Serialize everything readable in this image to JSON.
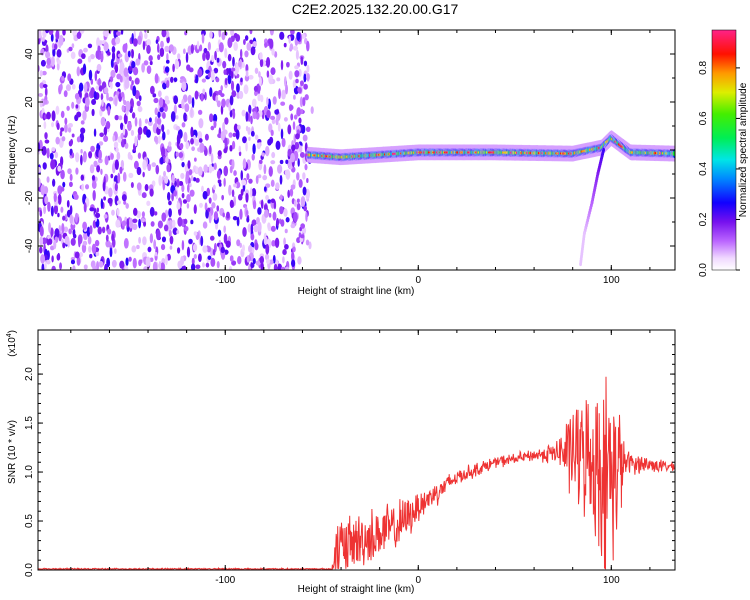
{
  "title": "C2E2.2025.132.20.00.G17",
  "chart_data": [
    {
      "type": "heatmap",
      "xlabel": "Height of straight line (km)",
      "ylabel": "Frequency (Hz)",
      "xlim": [
        -197,
        133
      ],
      "ylim": [
        -50,
        50
      ],
      "xticks": [
        -100,
        0,
        100
      ],
      "yticks": [
        -40,
        -20,
        0,
        20,
        40
      ],
      "colorbar": {
        "label": "Normalized spectral amplitude",
        "range": [
          0,
          0.95
        ],
        "ticks": [
          "0.0",
          "0.2",
          "0.4",
          "0.6",
          "0.8"
        ]
      },
      "noise_region": {
        "x": [
          -197,
          -57
        ],
        "y": [
          -50,
          50
        ],
        "level": [
          0.05,
          0.25
        ]
      },
      "signal_ridge": [
        {
          "x": -57,
          "y": -2
        },
        {
          "x": -40,
          "y": -3
        },
        {
          "x": -20,
          "y": -2
        },
        {
          "x": 0,
          "y": -1
        },
        {
          "x": 40,
          "y": -1
        },
        {
          "x": 80,
          "y": -1.5
        },
        {
          "x": 95,
          "y": 1
        },
        {
          "x": 100,
          "y": 5
        },
        {
          "x": 110,
          "y": -1
        },
        {
          "x": 133,
          "y": -1.5
        }
      ],
      "signal_branch": [
        {
          "x": 96,
          "y": 0
        },
        {
          "x": 93,
          "y": -10
        },
        {
          "x": 90,
          "y": -22
        },
        {
          "x": 86,
          "y": -35
        },
        {
          "x": 84,
          "y": -48
        }
      ]
    },
    {
      "type": "line",
      "xlabel": "Height of straight line (km)",
      "ylabel": "SNR (10 * v/v)",
      "multiplier": "(x10",
      "multiplier_exp": "4",
      "xlim": [
        -197,
        133
      ],
      "ylim": [
        0,
        2.45
      ],
      "xticks": [
        -100,
        0,
        100
      ],
      "yticks": [
        "0.0",
        "0.5",
        "1.0",
        "1.5",
        "2.0"
      ],
      "color": "#ee3333",
      "envelope": [
        {
          "x": -197,
          "base": 0.01,
          "amp": 0.01
        },
        {
          "x": -45,
          "base": 0.01,
          "amp": 0.01
        },
        {
          "x": -42,
          "base": 0.2,
          "amp": 0.4
        },
        {
          "x": -30,
          "base": 0.3,
          "amp": 0.35
        },
        {
          "x": -10,
          "base": 0.45,
          "amp": 0.3
        },
        {
          "x": 0,
          "base": 0.65,
          "amp": 0.2
        },
        {
          "x": 20,
          "base": 0.95,
          "amp": 0.1
        },
        {
          "x": 40,
          "base": 1.1,
          "amp": 0.07
        },
        {
          "x": 60,
          "base": 1.17,
          "amp": 0.07
        },
        {
          "x": 72,
          "base": 1.2,
          "amp": 0.15
        },
        {
          "x": 80,
          "base": 1.2,
          "amp": 0.6
        },
        {
          "x": 90,
          "base": 1.15,
          "amp": 0.8
        },
        {
          "x": 97,
          "base": 1.0,
          "amp": 1.25
        },
        {
          "x": 104,
          "base": 1.05,
          "amp": 0.9
        },
        {
          "x": 107,
          "base": 1.1,
          "amp": 0.15
        },
        {
          "x": 133,
          "base": 1.05,
          "amp": 0.05
        }
      ]
    }
  ]
}
